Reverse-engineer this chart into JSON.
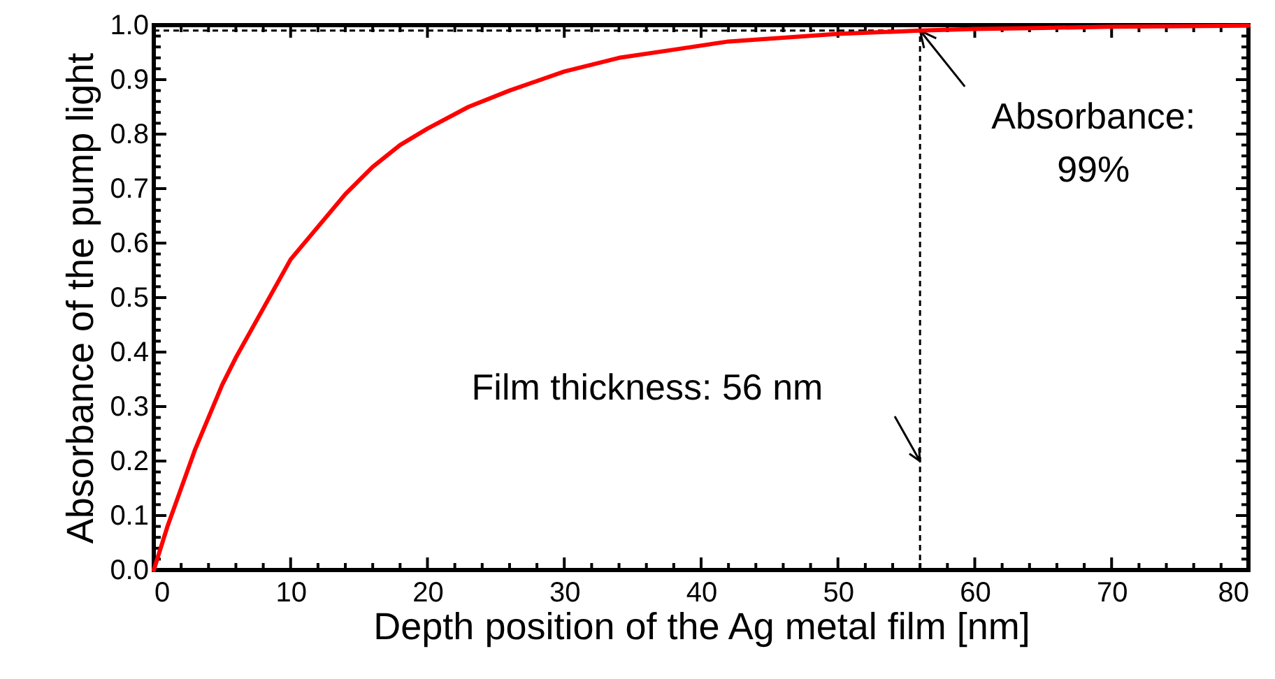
{
  "chart_data": {
    "type": "line",
    "xlabel": "Depth position of the Ag metal film [nm]",
    "ylabel": "Absorbance of the pump light",
    "x": [
      0,
      1,
      2,
      3,
      4,
      5,
      6,
      8,
      10,
      12,
      14,
      16,
      18,
      20,
      23,
      26,
      30,
      34,
      38,
      42,
      46,
      50,
      56,
      60,
      65,
      70,
      75,
      80
    ],
    "series": [
      {
        "color": "#ff0000",
        "values": [
          0,
          0.08,
          0.15,
          0.22,
          0.28,
          0.34,
          0.39,
          0.48,
          0.57,
          0.63,
          0.69,
          0.74,
          0.78,
          0.81,
          0.85,
          0.88,
          0.915,
          0.94,
          0.955,
          0.97,
          0.977,
          0.984,
          0.99,
          0.993,
          0.995,
          0.997,
          0.998,
          0.999
        ]
      }
    ],
    "xlim": [
      0,
      80
    ],
    "xticks": [
      0,
      10,
      20,
      30,
      40,
      50,
      60,
      70,
      80
    ],
    "ylim": [
      0,
      1.0
    ],
    "yticks": [
      {
        "value": 0,
        "label": "0.0"
      },
      0.1,
      0.2,
      0.3,
      0.4,
      0.5,
      0.6,
      0.7,
      0.8,
      0.9,
      {
        "value": 1,
        "label": "1.0"
      }
    ],
    "ref_lines": [
      {
        "axis": "x",
        "value": 56,
        "line_style": "dashed",
        "color": "#000000"
      },
      {
        "axis": "y",
        "value": 0.99,
        "line_style": "dashed",
        "color": "#000000"
      }
    ],
    "annotations": [
      {
        "text": "Absorbance:\n99%",
        "x": 56,
        "y": 0.99
      },
      "Film thickness: 56 nm"
    ],
    "grid": false,
    "marker": "none",
    "line_style": "solid"
  }
}
